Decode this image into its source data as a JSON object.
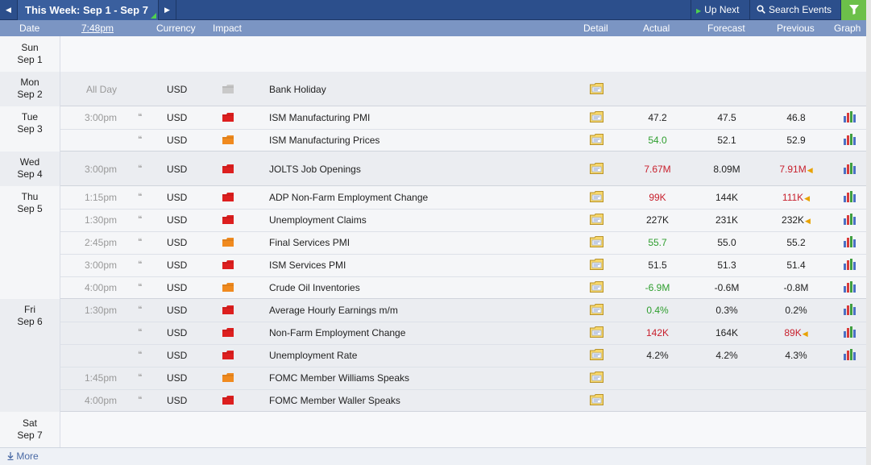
{
  "toolbar": {
    "prev_icon": "chevron-left-icon",
    "title": "This Week: Sep 1 - Sep 7",
    "next_icon": "chevron-right-icon",
    "up_next_label": "Up Next",
    "search_label": "Search Events",
    "filter_icon": "filter-icon"
  },
  "columns": {
    "date": "Date",
    "time": "7:48pm",
    "currency": "Currency",
    "impact": "Impact",
    "detail": "Detail",
    "actual": "Actual",
    "forecast": "Forecast",
    "previous": "Previous",
    "graph": "Graph"
  },
  "colors": {
    "impact_high": "#dd1f1f",
    "impact_medium": "#f08a1f",
    "impact_holiday": "#c9c9c9",
    "better": "#2e9e2e",
    "worse": "#c8202d",
    "revised_marker": "#e8a200"
  },
  "days": [
    {
      "weekday": "Sun",
      "date": "Sep 1",
      "events": []
    },
    {
      "weekday": "Mon",
      "date": "Sep 2",
      "events": [
        {
          "time": "All Day",
          "currency": "USD",
          "impact": "holiday",
          "event": "Bank Holiday",
          "actual": "",
          "actual_color": "black",
          "forecast": "",
          "previous": "",
          "previous_color": "black",
          "revised": false,
          "graph": false
        }
      ]
    },
    {
      "weekday": "Tue",
      "date": "Sep 3",
      "events": [
        {
          "time": "3:00pm",
          "currency": "USD",
          "impact": "high",
          "event": "ISM Manufacturing PMI",
          "actual": "47.2",
          "actual_color": "black",
          "forecast": "47.5",
          "previous": "46.8",
          "previous_color": "black",
          "revised": false,
          "graph": true
        },
        {
          "time": "",
          "currency": "USD",
          "impact": "medium",
          "event": "ISM Manufacturing Prices",
          "actual": "54.0",
          "actual_color": "green",
          "forecast": "52.1",
          "previous": "52.9",
          "previous_color": "black",
          "revised": false,
          "graph": true
        }
      ]
    },
    {
      "weekday": "Wed",
      "date": "Sep 4",
      "events": [
        {
          "time": "3:00pm",
          "currency": "USD",
          "impact": "high",
          "event": "JOLTS Job Openings",
          "actual": "7.67M",
          "actual_color": "red",
          "forecast": "8.09M",
          "previous": "7.91M",
          "previous_color": "red",
          "revised": true,
          "graph": true
        }
      ]
    },
    {
      "weekday": "Thu",
      "date": "Sep 5",
      "events": [
        {
          "time": "1:15pm",
          "currency": "USD",
          "impact": "high",
          "event": "ADP Non-Farm Employment Change",
          "actual": "99K",
          "actual_color": "red",
          "forecast": "144K",
          "previous": "111K",
          "previous_color": "red",
          "revised": true,
          "graph": true
        },
        {
          "time": "1:30pm",
          "currency": "USD",
          "impact": "high",
          "event": "Unemployment Claims",
          "actual": "227K",
          "actual_color": "black",
          "forecast": "231K",
          "previous": "232K",
          "previous_color": "black",
          "revised": true,
          "graph": true
        },
        {
          "time": "2:45pm",
          "currency": "USD",
          "impact": "medium",
          "event": "Final Services PMI",
          "actual": "55.7",
          "actual_color": "green",
          "forecast": "55.0",
          "previous": "55.2",
          "previous_color": "black",
          "revised": false,
          "graph": true
        },
        {
          "time": "3:00pm",
          "currency": "USD",
          "impact": "high",
          "event": "ISM Services PMI",
          "actual": "51.5",
          "actual_color": "black",
          "forecast": "51.3",
          "previous": "51.4",
          "previous_color": "black",
          "revised": false,
          "graph": true
        },
        {
          "time": "4:00pm",
          "currency": "USD",
          "impact": "medium",
          "event": "Crude Oil Inventories",
          "actual": "-6.9M",
          "actual_color": "green",
          "forecast": "-0.6M",
          "previous": "-0.8M",
          "previous_color": "black",
          "revised": false,
          "graph": true
        }
      ]
    },
    {
      "weekday": "Fri",
      "date": "Sep 6",
      "events": [
        {
          "time": "1:30pm",
          "currency": "USD",
          "impact": "high",
          "event": "Average Hourly Earnings m/m",
          "actual": "0.4%",
          "actual_color": "green",
          "forecast": "0.3%",
          "previous": "0.2%",
          "previous_color": "black",
          "revised": false,
          "graph": true
        },
        {
          "time": "",
          "currency": "USD",
          "impact": "high",
          "event": "Non-Farm Employment Change",
          "actual": "142K",
          "actual_color": "red",
          "forecast": "164K",
          "previous": "89K",
          "previous_color": "red",
          "revised": true,
          "graph": true
        },
        {
          "time": "",
          "currency": "USD",
          "impact": "high",
          "event": "Unemployment Rate",
          "actual": "4.2%",
          "actual_color": "black",
          "forecast": "4.2%",
          "previous": "4.3%",
          "previous_color": "black",
          "revised": false,
          "graph": true
        },
        {
          "time": "1:45pm",
          "currency": "USD",
          "impact": "medium",
          "event": "FOMC Member Williams Speaks",
          "actual": "",
          "actual_color": "black",
          "forecast": "",
          "previous": "",
          "previous_color": "black",
          "revised": false,
          "graph": false
        },
        {
          "time": "4:00pm",
          "currency": "USD",
          "impact": "high",
          "event": "FOMC Member Waller Speaks",
          "actual": "",
          "actual_color": "black",
          "forecast": "",
          "previous": "",
          "previous_color": "black",
          "revised": false,
          "graph": false
        }
      ]
    },
    {
      "weekday": "Sat",
      "date": "Sep 7",
      "events": []
    }
  ],
  "footer": {
    "more_label": "More",
    "more_icon": "download-arrow-icon"
  }
}
